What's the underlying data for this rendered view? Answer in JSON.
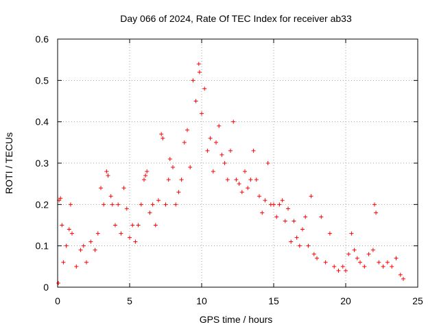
{
  "chart_data": {
    "type": "scatter",
    "title": "Day 066 of 2024, Rate Of TEC Index for receiver ab33",
    "xlabel": "GPS time / hours",
    "ylabel": "ROTI / TECUs",
    "xlim": [
      0,
      25
    ],
    "ylim": [
      0,
      0.6
    ],
    "xticks": [
      0,
      5,
      10,
      15,
      20,
      25
    ],
    "xtick_labels": [
      "0",
      "5",
      "10",
      "15",
      "20",
      "25"
    ],
    "yticks": [
      0,
      0.1,
      0.2,
      0.3,
      0.4,
      0.5,
      0.6
    ],
    "ytick_labels": [
      "0",
      "0.1",
      "0.2",
      "0.3",
      "0.4",
      "0.5",
      "0.6"
    ],
    "grid": true,
    "marker": "plus",
    "color": "#ff0000",
    "series": [
      {
        "points": [
          [
            0.05,
            0.01
          ],
          [
            0.1,
            0.21
          ],
          [
            0.2,
            0.215
          ],
          [
            0.3,
            0.15
          ],
          [
            0.4,
            0.06
          ],
          [
            0.6,
            0.1
          ],
          [
            0.8,
            0.14
          ],
          [
            0.9,
            0.2
          ],
          [
            1.0,
            0.13
          ],
          [
            1.3,
            0.05
          ],
          [
            1.6,
            0.09
          ],
          [
            1.8,
            0.1
          ],
          [
            2.0,
            0.06
          ],
          [
            2.3,
            0.11
          ],
          [
            2.6,
            0.09
          ],
          [
            2.8,
            0.13
          ],
          [
            3.0,
            0.24
          ],
          [
            3.2,
            0.2
          ],
          [
            3.4,
            0.28
          ],
          [
            3.5,
            0.27
          ],
          [
            3.7,
            0.22
          ],
          [
            3.8,
            0.2
          ],
          [
            4.0,
            0.15
          ],
          [
            4.2,
            0.2
          ],
          [
            4.4,
            0.13
          ],
          [
            4.6,
            0.24
          ],
          [
            4.8,
            0.19
          ],
          [
            5.0,
            0.12
          ],
          [
            5.2,
            0.15
          ],
          [
            5.4,
            0.11
          ],
          [
            5.6,
            0.15
          ],
          [
            5.8,
            0.2
          ],
          [
            6.0,
            0.26
          ],
          [
            6.1,
            0.27
          ],
          [
            6.2,
            0.28
          ],
          [
            6.4,
            0.18
          ],
          [
            6.6,
            0.2
          ],
          [
            6.8,
            0.15
          ],
          [
            7.0,
            0.21
          ],
          [
            7.2,
            0.37
          ],
          [
            7.3,
            0.36
          ],
          [
            7.5,
            0.2
          ],
          [
            7.7,
            0.26
          ],
          [
            7.8,
            0.31
          ],
          [
            8.0,
            0.29
          ],
          [
            8.2,
            0.2
          ],
          [
            8.4,
            0.23
          ],
          [
            8.6,
            0.26
          ],
          [
            8.8,
            0.35
          ],
          [
            9.0,
            0.38
          ],
          [
            9.2,
            0.29
          ],
          [
            9.4,
            0.5
          ],
          [
            9.6,
            0.45
          ],
          [
            9.8,
            0.54
          ],
          [
            9.85,
            0.52
          ],
          [
            10.0,
            0.42
          ],
          [
            10.2,
            0.48
          ],
          [
            10.4,
            0.33
          ],
          [
            10.6,
            0.36
          ],
          [
            10.8,
            0.28
          ],
          [
            11.0,
            0.35
          ],
          [
            11.2,
            0.39
          ],
          [
            11.4,
            0.32
          ],
          [
            11.6,
            0.3
          ],
          [
            11.8,
            0.26
          ],
          [
            12.0,
            0.33
          ],
          [
            12.2,
            0.4
          ],
          [
            12.4,
            0.26
          ],
          [
            12.6,
            0.25
          ],
          [
            12.8,
            0.23
          ],
          [
            13.0,
            0.28
          ],
          [
            13.2,
            0.24
          ],
          [
            13.4,
            0.26
          ],
          [
            13.6,
            0.33
          ],
          [
            13.8,
            0.26
          ],
          [
            14.0,
            0.22
          ],
          [
            14.2,
            0.18
          ],
          [
            14.4,
            0.21
          ],
          [
            14.6,
            0.3
          ],
          [
            14.8,
            0.2
          ],
          [
            15.0,
            0.2
          ],
          [
            15.2,
            0.17
          ],
          [
            15.4,
            0.2
          ],
          [
            15.6,
            0.21
          ],
          [
            15.8,
            0.16
          ],
          [
            16.0,
            0.19
          ],
          [
            16.2,
            0.11
          ],
          [
            16.4,
            0.16
          ],
          [
            16.6,
            0.12
          ],
          [
            16.8,
            0.1
          ],
          [
            17.0,
            0.14
          ],
          [
            17.2,
            0.17
          ],
          [
            17.4,
            0.1
          ],
          [
            17.6,
            0.22
          ],
          [
            17.8,
            0.08
          ],
          [
            18.0,
            0.07
          ],
          [
            18.3,
            0.17
          ],
          [
            18.6,
            0.06
          ],
          [
            18.9,
            0.13
          ],
          [
            19.2,
            0.05
          ],
          [
            19.5,
            0.04
          ],
          [
            19.8,
            0.05
          ],
          [
            20.0,
            0.04
          ],
          [
            20.2,
            0.08
          ],
          [
            20.4,
            0.13
          ],
          [
            20.6,
            0.09
          ],
          [
            20.8,
            0.07
          ],
          [
            21.0,
            0.06
          ],
          [
            21.3,
            0.05
          ],
          [
            21.6,
            0.08
          ],
          [
            21.9,
            0.09
          ],
          [
            22.0,
            0.2
          ],
          [
            22.1,
            0.18
          ],
          [
            22.3,
            0.06
          ],
          [
            22.6,
            0.05
          ],
          [
            22.9,
            0.06
          ],
          [
            23.2,
            0.05
          ],
          [
            23.5,
            0.07
          ],
          [
            23.8,
            0.03
          ],
          [
            24.0,
            0.02
          ]
        ]
      }
    ]
  }
}
